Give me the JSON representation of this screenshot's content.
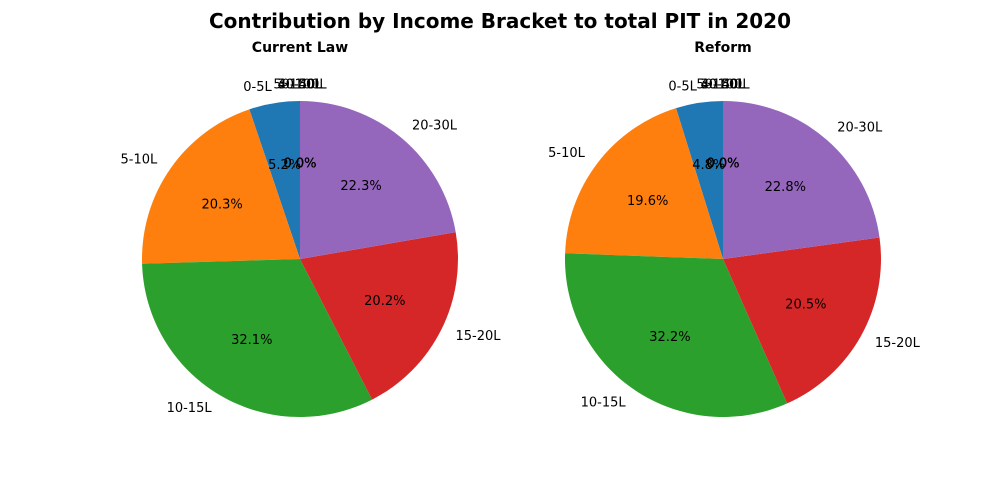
{
  "figure": {
    "title": "Contribution by Income Bracket to total PIT in 2020"
  },
  "chart_data": [
    {
      "type": "pie",
      "title": "Current Law",
      "labels": [
        "0-5L",
        "5-10L",
        "10-15L",
        "15-20L",
        "20-30L",
        "30-40L",
        "40-50L",
        "50-100L",
        ">100L"
      ],
      "values": [
        5.2,
        20.3,
        32.1,
        20.2,
        22.3,
        0.0,
        0.0,
        0.0,
        0.0
      ],
      "pct_labels": [
        "5.2%",
        "20.3%",
        "32.1%",
        "20.2%",
        "22.3%",
        "0.0%",
        "0.0%",
        "0.0%",
        "0.0%"
      ],
      "colors": [
        "#1f77b4",
        "#ff7f0e",
        "#2ca02c",
        "#d62728",
        "#9467bd",
        "#8c564b",
        "#e377c2",
        "#7f7f7f",
        "#bcbd22"
      ],
      "start_angle": 90,
      "direction": "counterclockwise"
    },
    {
      "type": "pie",
      "title": "Reform",
      "labels": [
        "0-5L",
        "5-10L",
        "10-15L",
        "15-20L",
        "20-30L",
        "30-40L",
        "40-50L",
        "50-100L",
        ">100L"
      ],
      "values": [
        4.8,
        19.6,
        32.2,
        20.5,
        22.8,
        0.0,
        0.0,
        0.0,
        0.0
      ],
      "pct_labels": [
        "4.8%",
        "19.6%",
        "32.2%",
        "20.5%",
        "22.8%",
        "0.0%",
        "0.0%",
        "0.0%",
        "0.0%"
      ],
      "colors": [
        "#1f77b4",
        "#ff7f0e",
        "#2ca02c",
        "#d62728",
        "#9467bd",
        "#8c564b",
        "#e377c2",
        "#7f7f7f",
        "#bcbd22"
      ],
      "start_angle": 90,
      "direction": "counterclockwise"
    }
  ]
}
